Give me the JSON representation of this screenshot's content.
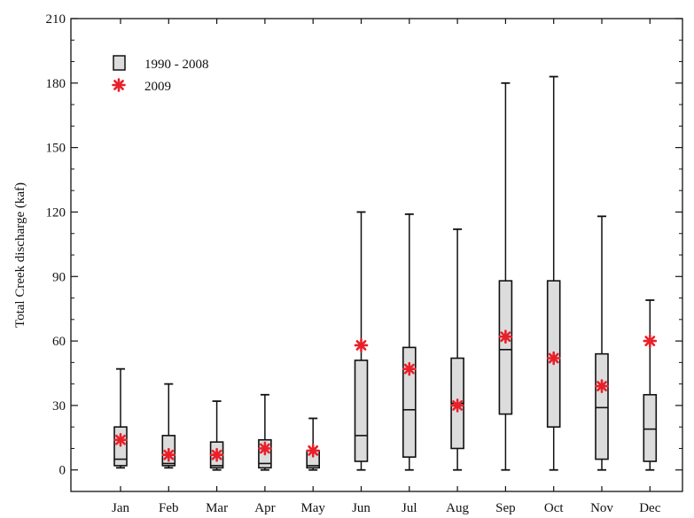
{
  "chart_data": {
    "type": "box",
    "title": "",
    "xlabel": "",
    "ylabel": "Total Creek discharge (kaf)",
    "ylim": [
      -10,
      210
    ],
    "yticks": [
      0,
      30,
      60,
      90,
      120,
      150,
      180,
      210
    ],
    "categories": [
      "Jan",
      "Feb",
      "Mar",
      "Apr",
      "May",
      "Jun",
      "Jul",
      "Aug",
      "Sep",
      "Oct",
      "Nov",
      "Dec"
    ],
    "grid": false,
    "legend_position": "top-left",
    "series": [
      {
        "name": "1990 - 2008",
        "kind": "boxplot",
        "color": "#dcdcdc",
        "edge_color": "#111111",
        "min": [
          1,
          1,
          0,
          0,
          0,
          0,
          0,
          0,
          0,
          0,
          0,
          0
        ],
        "q1": [
          2,
          2,
          1,
          1,
          1,
          4,
          6,
          10,
          26,
          20,
          5,
          4
        ],
        "median": [
          5,
          3,
          2,
          3,
          2,
          16,
          28,
          31,
          56,
          52,
          29,
          19
        ],
        "q3": [
          20,
          16,
          13,
          14,
          9,
          51,
          57,
          52,
          88,
          88,
          54,
          35
        ],
        "max": [
          47,
          40,
          32,
          35,
          24,
          120,
          119,
          112,
          180,
          183,
          118,
          79
        ]
      },
      {
        "name": "2009",
        "kind": "marker",
        "marker": "asterisk",
        "color": "#e8202a",
        "values": [
          14,
          7,
          7,
          10,
          9,
          58,
          47,
          30,
          62,
          52,
          39,
          60
        ]
      }
    ]
  }
}
